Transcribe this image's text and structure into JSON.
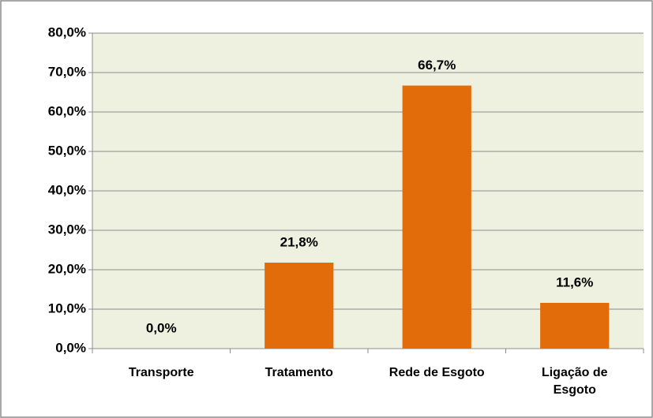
{
  "chart_data": {
    "type": "bar",
    "categories": [
      "Transporte",
      "Tratamento",
      "Rede de Esgoto",
      "Ligação de Esgoto"
    ],
    "values": [
      0,
      21.8,
      66.7,
      11.6
    ],
    "value_labels": [
      "0,0%",
      "21,8%",
      "66,7%",
      "11,6%"
    ],
    "color": "#e36c0a",
    "ylim": [
      0,
      80
    ],
    "yticks": [
      {
        "value": 0,
        "label": "0,0%"
      },
      {
        "value": 10,
        "label": "10,0%"
      },
      {
        "value": 20,
        "label": "20,0%"
      },
      {
        "value": 30,
        "label": "30,0%"
      },
      {
        "value": 40,
        "label": "40,0%"
      },
      {
        "value": 50,
        "label": "50,0%"
      },
      {
        "value": 60,
        "label": "60,0%"
      },
      {
        "value": 70,
        "label": "70,0%"
      },
      {
        "value": 80,
        "label": "80,0%"
      }
    ],
    "grid": true
  }
}
